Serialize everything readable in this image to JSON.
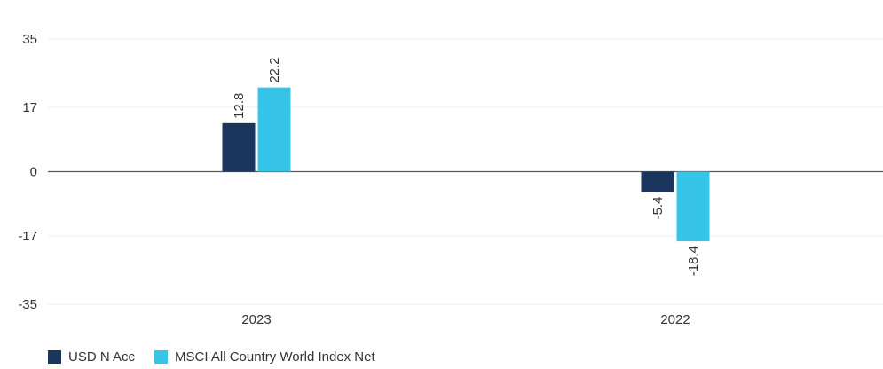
{
  "chart_data": {
    "type": "bar",
    "categories": [
      "2023",
      "2022"
    ],
    "series": [
      {
        "name": "USD N Acc",
        "values": [
          12.8,
          -5.4
        ],
        "color": "#1b365d"
      },
      {
        "name": "MSCI All Country World Index Net",
        "values": [
          22.2,
          -18.4
        ],
        "color": "#36c5e9"
      }
    ],
    "yticks": [
      "35",
      "17",
      "0",
      "-17",
      "-35"
    ],
    "ylim": [
      -35,
      35
    ],
    "grid": true,
    "legend": "bottom-left",
    "title": "",
    "xlabel": "",
    "ylabel": ""
  }
}
